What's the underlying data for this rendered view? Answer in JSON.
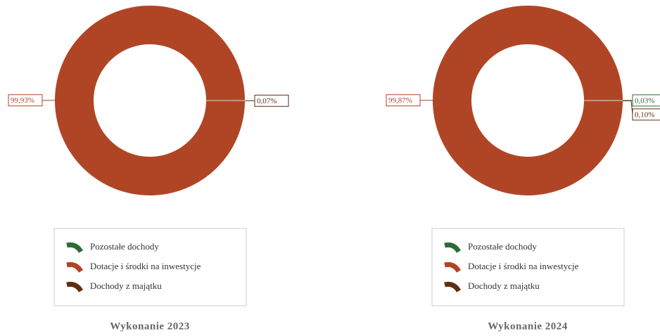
{
  "chart_data": [
    {
      "type": "pie",
      "title": "Wykonanie 2023",
      "categories": [
        "Pozostałe dochody",
        "Dotacje i środki na inwestycje",
        "Dochody z majątku"
      ],
      "values": [
        0,
        99.93,
        0.07
      ],
      "value_labels": [
        null,
        "99,93%",
        "0,07%"
      ],
      "colors": [
        "#2e6b38",
        "#b04526",
        "#5e2e10"
      ]
    },
    {
      "type": "pie",
      "title": "Wykonanie 2024",
      "categories": [
        "Pozostałe dochody",
        "Dotacje i środki na inwestycje",
        "Dochody z majątku"
      ],
      "values": [
        0.03,
        99.87,
        0.1
      ],
      "value_labels": [
        "0,03%",
        "99,87%",
        "0,10%"
      ],
      "colors": [
        "#2e6b38",
        "#b04526",
        "#5e2e10"
      ]
    }
  ]
}
